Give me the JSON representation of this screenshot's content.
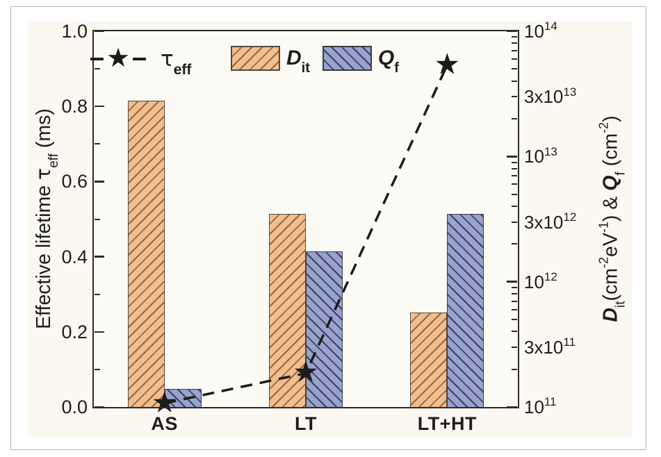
{
  "window": {
    "background": "#ffffff",
    "frame_border": "#b3b3b3"
  },
  "figure": {
    "background": "#FBF7F1",
    "plot_background": "#FCFAF5",
    "axis_color": "#2b2b2b",
    "text_color": "#1e1e1e"
  },
  "chart_data": {
    "type": "bar",
    "marker_glyph": "★",
    "categories": [
      "AS",
      "LT",
      "LT+HT"
    ],
    "series": [
      {
        "name": "Dit",
        "type": "bar",
        "axis": "right",
        "values": [
          28000000000000.0,
          3500000000000.0,
          570000000000.0
        ],
        "fill": "#F2BE8E",
        "hatch_color": "#96683F",
        "hatch_dir": "fwd",
        "border": "#4f4a42"
      },
      {
        "name": "Qf",
        "type": "bar",
        "axis": "right",
        "values": [
          140000000000.0,
          1750000000000.0,
          3500000000000.0
        ],
        "fill": "#98A2CB",
        "hatch_color": "#39406B",
        "hatch_dir": "back",
        "border": "#3a3a44"
      },
      {
        "name": "tau_eff",
        "type": "line",
        "axis": "left",
        "values": [
          0.01,
          0.09,
          0.91
        ],
        "unit": "ms",
        "line_color": "#1c1c1c",
        "line_style": "dashed",
        "marker": "star"
      }
    ],
    "left_axis": {
      "min": 0,
      "max": 1.0,
      "major_ticks": [
        {
          "v": 0.0,
          "label": "0.0"
        },
        {
          "v": 0.2,
          "label": "0.2"
        },
        {
          "v": 0.4,
          "label": "0.4"
        },
        {
          "v": 0.6,
          "label": "0.6"
        },
        {
          "v": 0.8,
          "label": "0.8"
        },
        {
          "v": 1.0,
          "label": "1.0"
        }
      ],
      "minor_ticks": [
        0.1,
        0.3,
        0.5,
        0.7,
        0.9
      ]
    },
    "right_axis": {
      "scale": "log",
      "min": 100000000000.0,
      "max": 100000000000000.0,
      "labeled_ticks": [
        {
          "v": 100000000000.0,
          "base": "10",
          "exp": "11"
        },
        {
          "v": 300000000000.0,
          "base": "3x10",
          "exp": "11"
        },
        {
          "v": 1000000000000.0,
          "base": "10",
          "exp": "12"
        },
        {
          "v": 3000000000000.0,
          "base": "3x10",
          "exp": "12"
        },
        {
          "v": 10000000000000.0,
          "base": "10",
          "exp": "13"
        },
        {
          "v": 30000000000000.0,
          "base": "3x10",
          "exp": "13"
        },
        {
          "v": 100000000000000.0,
          "base": "10",
          "exp": "14"
        }
      ]
    },
    "grid": false,
    "legend_position": "top"
  },
  "axis_titles": {
    "left": {
      "pre": "Effective lifetime ",
      "tau": "τ",
      "sub": "eff",
      "post": " (ms)"
    },
    "right": {
      "d": "D",
      "d_sub": "it",
      "p1": "(cm",
      "s1": "-2",
      "p2": "eV",
      "s2": "-1",
      "p3": ") & ",
      "q": "Q",
      "q_sub": "f",
      "p4": " (cm",
      "s3": "-2",
      "p5": ")"
    }
  },
  "legend": {
    "tau": {
      "label": "τ",
      "sub": "eff"
    },
    "dit": {
      "label": "D",
      "sub": "it"
    },
    "qf": {
      "label": "Q",
      "sub": "f"
    }
  }
}
